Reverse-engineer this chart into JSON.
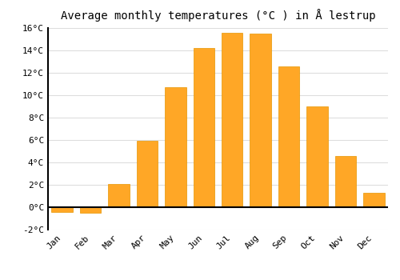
{
  "title": "Average monthly temperatures (°C ) in Å lestrup",
  "months": [
    "Jan",
    "Feb",
    "Mar",
    "Apr",
    "May",
    "Jun",
    "Jul",
    "Aug",
    "Sep",
    "Oct",
    "Nov",
    "Dec"
  ],
  "temperatures": [
    -0.4,
    -0.5,
    2.1,
    5.9,
    10.7,
    14.2,
    15.6,
    15.5,
    12.6,
    9.0,
    4.6,
    1.3
  ],
  "bar_color": "#FFA726",
  "bar_edge_color": "#E69500",
  "ylim": [
    -2,
    16
  ],
  "yticks": [
    -2,
    0,
    2,
    4,
    6,
    8,
    10,
    12,
    14,
    16
  ],
  "background_color": "#ffffff",
  "grid_color": "#dddddd",
  "title_fontsize": 10,
  "tick_fontsize": 8,
  "bar_width": 0.75
}
